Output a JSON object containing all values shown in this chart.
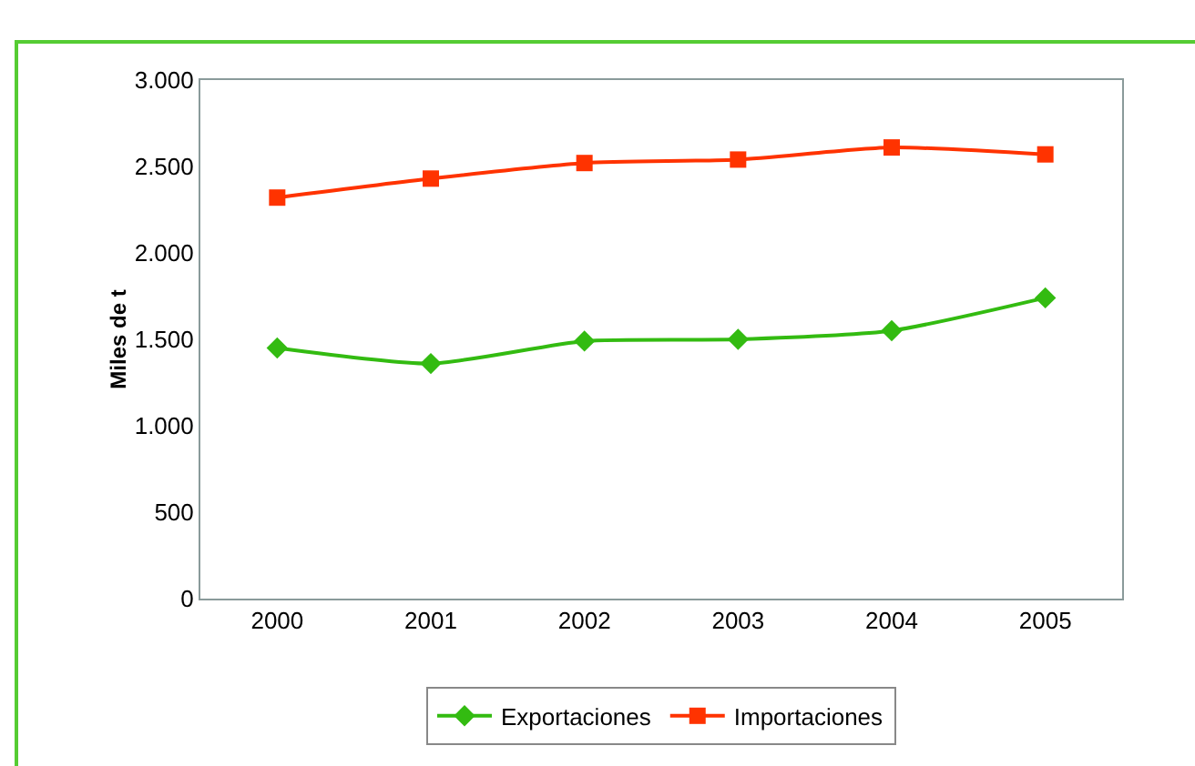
{
  "chart_data": {
    "type": "line",
    "ylabel": "Miles de t",
    "categories": [
      "2000",
      "2001",
      "2002",
      "2003",
      "2004",
      "2005"
    ],
    "series": [
      {
        "name": "Exportaciones",
        "color": "#33bb11",
        "marker": "diamond",
        "values": [
          1450,
          1360,
          1490,
          1500,
          1550,
          1740
        ]
      },
      {
        "name": "Importaciones",
        "color": "#ff3300",
        "marker": "square",
        "values": [
          2320,
          2430,
          2520,
          2540,
          2610,
          2570
        ]
      }
    ],
    "ylim": [
      0,
      3000
    ],
    "yticks": [
      0,
      500,
      {
        "value": 1000,
        "label": "1.000"
      },
      {
        "value": 1500,
        "label": "1.500"
      },
      {
        "value": 2000,
        "label": "2.000"
      },
      {
        "value": 2500,
        "label": "2.500"
      },
      {
        "value": 3000,
        "label": "3.000"
      }
    ],
    "grid": false,
    "legend": "bottom",
    "line_style": "solid"
  }
}
